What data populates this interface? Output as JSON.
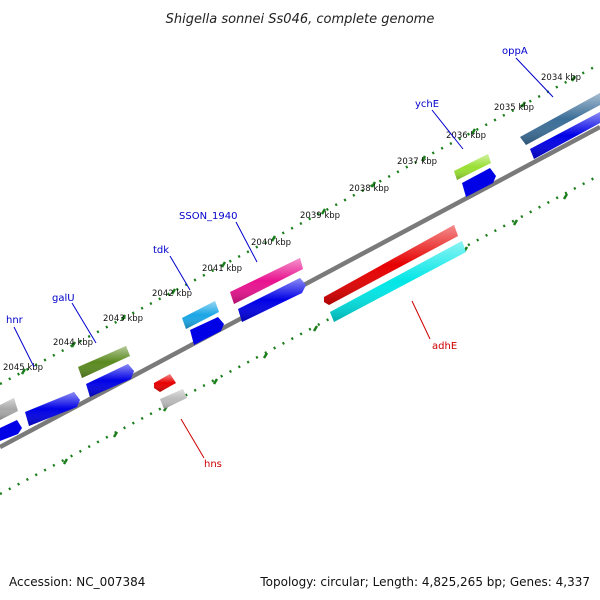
{
  "title": "Shigella sonnei Ss046, complete genome",
  "footer": {
    "accession": "Accession: NC_007384",
    "summary": "Topology: circular; Length: 4,825,265 bp; Genes: 4,337"
  },
  "colors": {
    "backbone": "#7a7a7a",
    "ticks": "#1b7d1b",
    "cds": "#0000e6",
    "label_forward": "#0000cc",
    "label_reverse": "#cc0000"
  },
  "kbp_labels": [
    "2034 kbp",
    "2035 kbp",
    "2036 kbp",
    "2037 kbp",
    "2038 kbp",
    "2039 kbp",
    "2040 kbp",
    "2041 kbp",
    "2042 kbp",
    "2043 kbp",
    "2044 kbp",
    "2045 kbp"
  ],
  "gene_labels": [
    {
      "name": "oppA",
      "strand": "forward"
    },
    {
      "name": "ychE",
      "strand": "forward"
    },
    {
      "name": "SSON_1940",
      "strand": "forward"
    },
    {
      "name": "tdk",
      "strand": "forward"
    },
    {
      "name": "galU",
      "strand": "forward"
    },
    {
      "name": "hnr",
      "strand": "forward"
    },
    {
      "name": "adhE",
      "strand": "reverse"
    },
    {
      "name": "hns",
      "strand": "reverse"
    }
  ]
}
